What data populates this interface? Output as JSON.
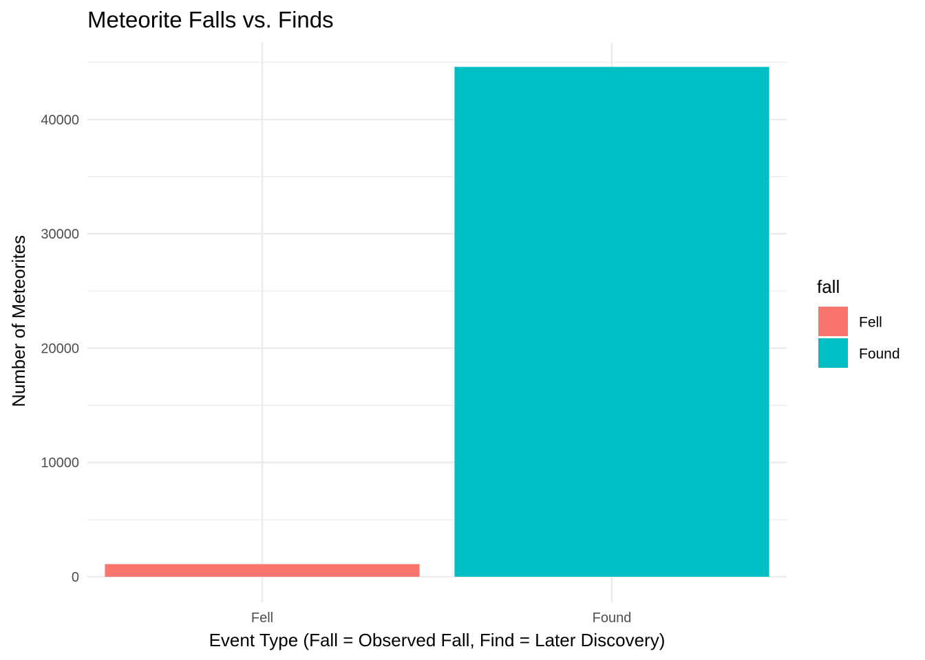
{
  "chart_data": {
    "type": "bar",
    "title": "Meteorite Falls vs. Finds",
    "xlabel": "Event Type (Fall = Observed Fall, Find = Later Discovery)",
    "ylabel": "Number of Meteorites",
    "categories": [
      "Fell",
      "Found"
    ],
    "values": [
      1107,
      44609
    ],
    "colors": [
      "#F8766D",
      "#00BFC4"
    ],
    "ylim": [
      -2230,
      46730
    ],
    "yticks": [
      0,
      10000,
      20000,
      30000,
      40000
    ],
    "ytick_labels": [
      "0",
      "10000",
      "20000",
      "30000",
      "40000"
    ],
    "grid": true,
    "legend": {
      "title": "fall",
      "placement": "right",
      "entries": [
        {
          "label": "Fell",
          "color": "#F8766D"
        },
        {
          "label": "Found",
          "color": "#00BFC4"
        }
      ]
    }
  }
}
